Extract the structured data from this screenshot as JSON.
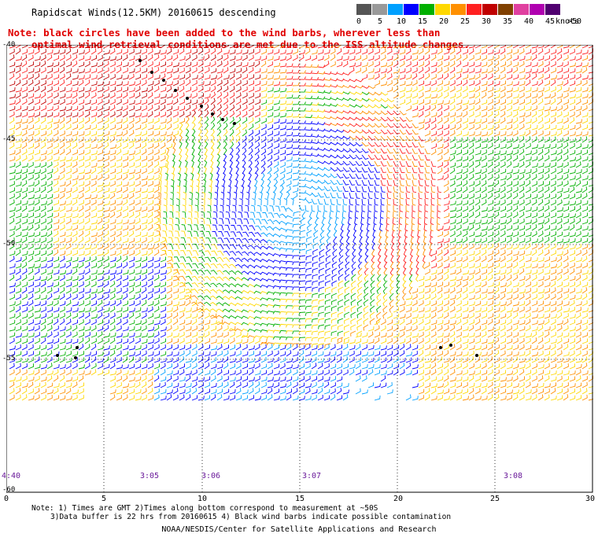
{
  "title": "Rapidscat Winds(12.5KM) 20160615 descending",
  "note": {
    "line1": "Note: black circles have been added to the wind barbs, wherever less than",
    "line2": "optimal wind retrieval conditions are met due to the ISS altitude changes."
  },
  "colorbar": {
    "colors": [
      "#555555",
      "#999999",
      "#00a0ff",
      "#0000ff",
      "#00b000",
      "#ffd800",
      "#ff9000",
      "#ff2020",
      "#c00000",
      "#804000",
      "#e040a0",
      "#b000b0",
      "#500070"
    ],
    "labels": [
      "0",
      "5",
      "10",
      "15",
      "20",
      "25",
      "30",
      "35",
      "40",
      "45",
      ">50"
    ],
    "unit": "knots"
  },
  "axes": {
    "lat_labels": [
      "-40",
      "-45",
      "-50",
      "-55",
      "-60"
    ],
    "lon_labels": [
      "0",
      "5",
      "10",
      "15",
      "20",
      "25",
      "30"
    ]
  },
  "pass_times": [
    "4:40",
    "3:05",
    "3:06",
    "3:07",
    "3:08"
  ],
  "footnote": {
    "line1": "Note: 1) Times are GMT 2)Times along bottom correspond to measurement at ~50S",
    "line2": "3)Data buffer is 22 hrs from 20160615 4) Black wind barbs indicate possible contamination"
  },
  "credit": "NOAA/NESDIS/Center for Satellite Applications and Research"
}
